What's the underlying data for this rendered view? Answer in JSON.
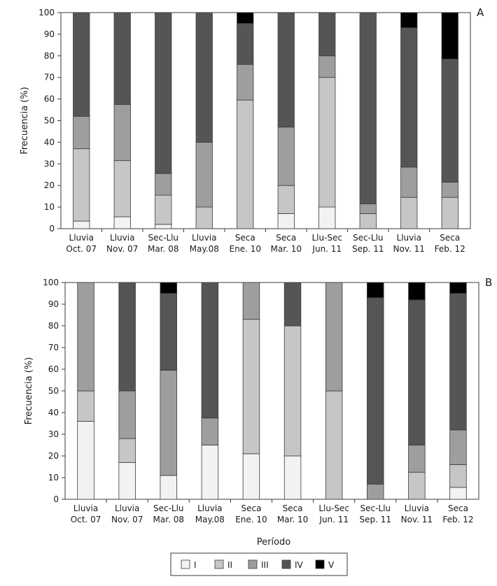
{
  "legend": [
    {
      "label": "I",
      "color": "#f2f2f2"
    },
    {
      "label": "II",
      "color": "#c6c6c6"
    },
    {
      "label": "III",
      "color": "#9e9e9e"
    },
    {
      "label": "IV",
      "color": "#555555"
    },
    {
      "label": "V",
      "color": "#000000"
    }
  ],
  "chart_data": [
    {
      "type": "bar",
      "stacked": true,
      "panel_label": "A",
      "ylabel": "Frecuencia (%)",
      "xlabel": "",
      "ylim": [
        0,
        100
      ],
      "yticks": [
        0,
        10,
        20,
        30,
        40,
        50,
        60,
        70,
        80,
        90,
        100
      ],
      "categories": [
        [
          "Lluvia",
          "Oct. 07"
        ],
        [
          "Lluvia",
          "Nov. 07"
        ],
        [
          "Sec-Llu",
          "Mar. 08"
        ],
        [
          "Lluvia",
          "May.08"
        ],
        [
          "Seca",
          "Ene. 10"
        ],
        [
          "Seca",
          "Mar. 10"
        ],
        [
          "Llu-Sec",
          "Jun. 11"
        ],
        [
          "Sec-Llu",
          "Sep. 11"
        ],
        [
          "Lluvia",
          "Nov. 11"
        ],
        [
          "Seca",
          "Feb. 12"
        ]
      ],
      "series": [
        {
          "name": "I",
          "values": [
            3.5,
            5.5,
            2,
            0,
            0,
            7,
            10,
            0,
            0,
            0
          ]
        },
        {
          "name": "II",
          "values": [
            33.5,
            26,
            13.5,
            10,
            59.5,
            13,
            60,
            7,
            14.5,
            14.5
          ]
        },
        {
          "name": "III",
          "values": [
            15,
            26,
            10,
            30,
            16.5,
            27,
            10,
            4.5,
            14,
            7
          ]
        },
        {
          "name": "IV",
          "values": [
            48,
            42.5,
            74.5,
            60,
            19,
            53,
            20,
            88.5,
            64.5,
            57
          ]
        },
        {
          "name": "V",
          "values": [
            0,
            0,
            0,
            0,
            5,
            0,
            0,
            0,
            7,
            21.5
          ]
        }
      ]
    },
    {
      "type": "bar",
      "stacked": true,
      "panel_label": "B",
      "ylabel": "Frecuencia (%)",
      "xlabel": "Período",
      "ylim": [
        0,
        100
      ],
      "yticks": [
        0,
        10,
        20,
        30,
        40,
        50,
        60,
        70,
        80,
        90,
        100
      ],
      "categories": [
        [
          "Lluvia",
          "Oct. 07"
        ],
        [
          "Lluvia",
          "Nov. 07"
        ],
        [
          "Sec-Llu",
          "Mar. 08"
        ],
        [
          "Lluvia",
          "May.08"
        ],
        [
          "Seca",
          "Ene. 10"
        ],
        [
          "Seca",
          "Mar. 10"
        ],
        [
          "Llu-Sec",
          "Jun. 11"
        ],
        [
          "Sec-Llu",
          "Sep. 11"
        ],
        [
          "Lluvia",
          "Nov. 11"
        ],
        [
          "Seca",
          "Feb. 12"
        ]
      ],
      "series": [
        {
          "name": "I",
          "values": [
            36,
            17,
            11,
            25,
            21,
            20,
            0,
            0,
            0,
            5.5
          ]
        },
        {
          "name": "II",
          "values": [
            14,
            11,
            0,
            0,
            62,
            60,
            50,
            0,
            12.5,
            10.5
          ]
        },
        {
          "name": "III",
          "values": [
            50,
            22,
            48.5,
            12.5,
            17,
            0,
            50,
            7,
            12.5,
            16
          ]
        },
        {
          "name": "IV",
          "values": [
            0,
            50,
            35.5,
            62.5,
            0,
            20,
            0,
            86,
            67,
            63
          ]
        },
        {
          "name": "V",
          "values": [
            0,
            0,
            5,
            0,
            0,
            0,
            0,
            7,
            8,
            5
          ]
        }
      ]
    }
  ]
}
